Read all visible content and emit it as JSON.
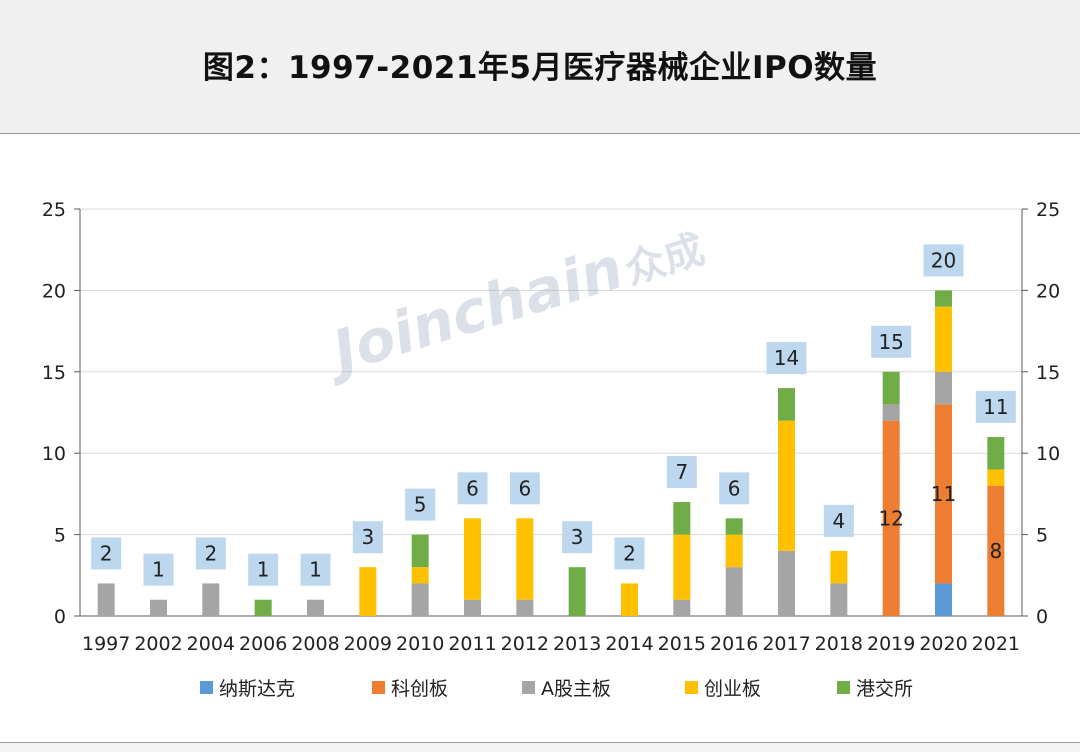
{
  "title": "图2：1997-2021年5月医疗器械企业IPO数量",
  "watermark": {
    "latin": "Joinchain",
    "cn": "众成"
  },
  "colors": {
    "纳斯达克": "#5b9bd5",
    "科创板": "#ed7d31",
    "A股主板": "#a5a5a5",
    "创业板": "#ffc000",
    "港交所": "#70ad47",
    "total_label_bg": "#bdd7ee"
  },
  "chart_data": {
    "type": "bar",
    "stacked": true,
    "title": "图2：1997-2021年5月医疗器械企业IPO数量",
    "categories": [
      "1997",
      "2002",
      "2004",
      "2006",
      "2008",
      "2009",
      "2010",
      "2011",
      "2012",
      "2013",
      "2014",
      "2015",
      "2016",
      "2017",
      "2018",
      "2019",
      "2020",
      "2021"
    ],
    "series": [
      {
        "name": "纳斯达克",
        "values": [
          0,
          0,
          0,
          0,
          0,
          0,
          0,
          0,
          0,
          0,
          0,
          0,
          0,
          0,
          0,
          0,
          2,
          0
        ]
      },
      {
        "name": "科创板",
        "values": [
          0,
          0,
          0,
          0,
          0,
          0,
          0,
          0,
          0,
          0,
          0,
          0,
          0,
          0,
          0,
          12,
          11,
          8
        ]
      },
      {
        "name": "A股主板",
        "values": [
          2,
          1,
          2,
          0,
          1,
          0,
          2,
          1,
          1,
          0,
          0,
          1,
          3,
          4,
          2,
          1,
          2,
          0
        ]
      },
      {
        "name": "创业板",
        "values": [
          0,
          0,
          0,
          0,
          0,
          3,
          1,
          5,
          5,
          0,
          2,
          4,
          2,
          8,
          2,
          0,
          4,
          1
        ]
      },
      {
        "name": "港交所",
        "values": [
          0,
          0,
          0,
          1,
          0,
          0,
          2,
          0,
          0,
          3,
          0,
          2,
          1,
          2,
          0,
          2,
          1,
          2
        ]
      }
    ],
    "totals": [
      2,
      1,
      2,
      1,
      1,
      3,
      5,
      6,
      6,
      3,
      2,
      7,
      6,
      14,
      4,
      15,
      20,
      11
    ],
    "segment_labels": [
      {
        "category": "2019",
        "series": "科创板",
        "text": "12"
      },
      {
        "category": "2020",
        "series": "科创板",
        "text": "11"
      },
      {
        "category": "2021",
        "series": "科创板",
        "text": "8"
      }
    ],
    "yticks": [
      "0",
      "5",
      "10",
      "15",
      "20",
      "25"
    ],
    "ylim": [
      0,
      25
    ],
    "secondary_axis": true,
    "grid": true,
    "legend_position": "bottom",
    "xlabel": "",
    "ylabel": ""
  }
}
